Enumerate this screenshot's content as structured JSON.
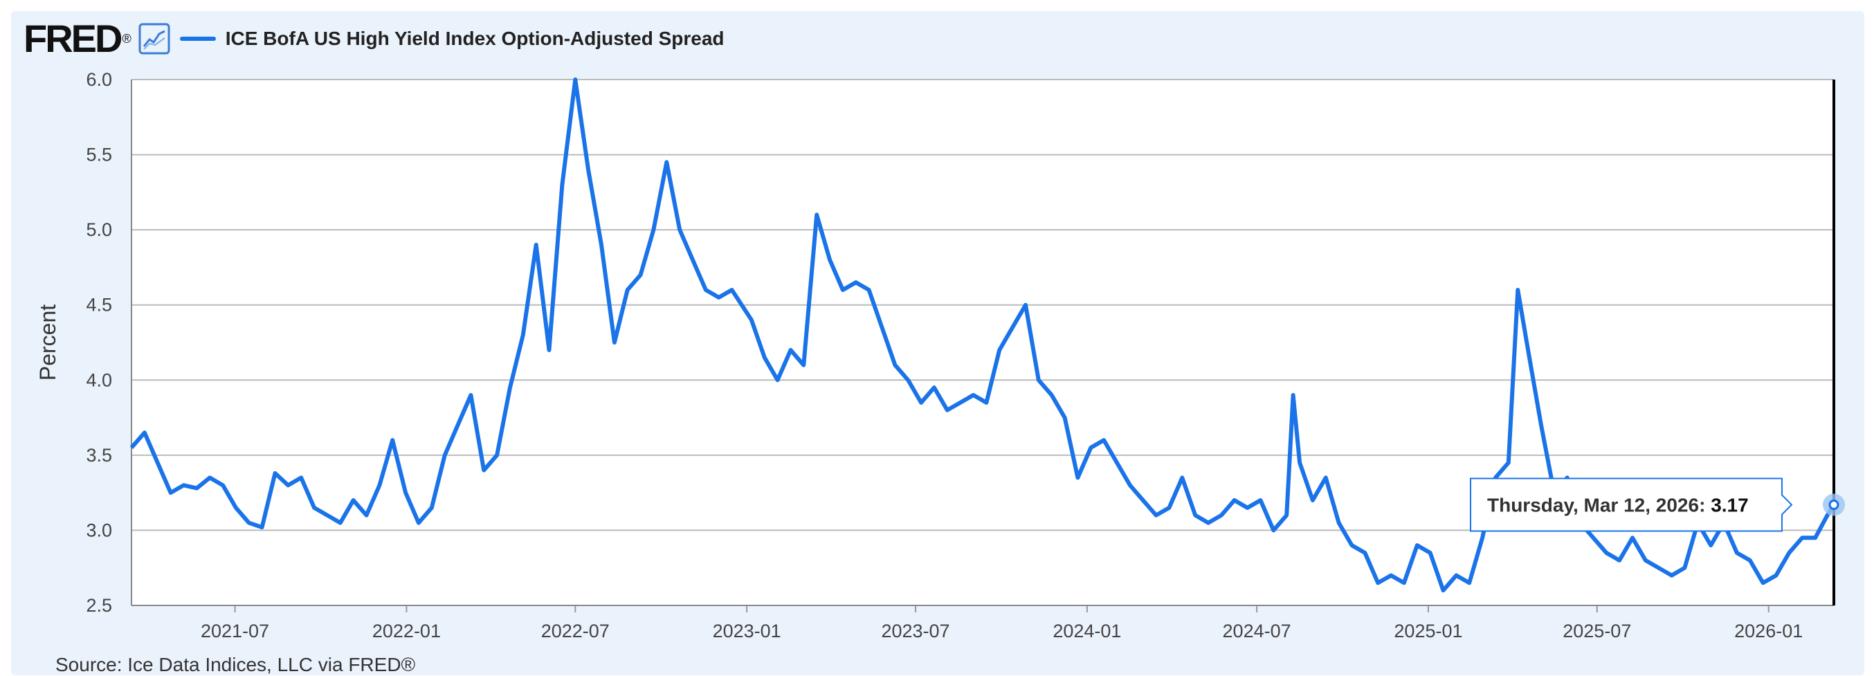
{
  "header": {
    "logo_text": "FRED",
    "logo_mark": "®",
    "logo_icon": "line-chart-icon",
    "series_label": "ICE BofA US High Yield Index Option-Adjusted Spread"
  },
  "colors": {
    "series": "#1a73e8",
    "panel_bg": "#eaf2fb",
    "grid": "#bbbbbb"
  },
  "tooltip": {
    "date": "Thursday, Mar 12, 2026:",
    "value": "3.17"
  },
  "chart_data": {
    "type": "line",
    "title": "",
    "xlabel": "",
    "ylabel": "Percent",
    "ylim": [
      2.5,
      6.0
    ],
    "yticks": [
      "2.5",
      "3.0",
      "3.5",
      "4.0",
      "4.5",
      "5.0",
      "5.5",
      "6.0"
    ],
    "xticks": [
      "2021-07",
      "2022-01",
      "2022-07",
      "2023-01",
      "2023-07",
      "2024-01",
      "2024-07",
      "2025-01",
      "2025-07",
      "2026-01"
    ],
    "xlim": [
      "2021-03-12",
      "2026-03-12"
    ],
    "grid": true,
    "legend": "top-left",
    "series": [
      {
        "name": "ICE BofA US High Yield Index Option-Adjusted Spread",
        "points": [
          [
            "2021-03-12",
            3.55
          ],
          [
            "2021-03-26",
            3.65
          ],
          [
            "2021-04-09",
            3.45
          ],
          [
            "2021-04-23",
            3.25
          ],
          [
            "2021-05-07",
            3.3
          ],
          [
            "2021-05-21",
            3.28
          ],
          [
            "2021-06-04",
            3.35
          ],
          [
            "2021-06-18",
            3.3
          ],
          [
            "2021-07-02",
            3.15
          ],
          [
            "2021-07-16",
            3.05
          ],
          [
            "2021-07-30",
            3.02
          ],
          [
            "2021-08-13",
            3.38
          ],
          [
            "2021-08-27",
            3.3
          ],
          [
            "2021-09-10",
            3.35
          ],
          [
            "2021-09-24",
            3.15
          ],
          [
            "2021-10-08",
            3.1
          ],
          [
            "2021-10-22",
            3.05
          ],
          [
            "2021-11-05",
            3.2
          ],
          [
            "2021-11-19",
            3.1
          ],
          [
            "2021-12-03",
            3.3
          ],
          [
            "2021-12-17",
            3.6
          ],
          [
            "2021-12-31",
            3.25
          ],
          [
            "2022-01-14",
            3.05
          ],
          [
            "2022-01-28",
            3.15
          ],
          [
            "2022-02-11",
            3.5
          ],
          [
            "2022-02-25",
            3.7
          ],
          [
            "2022-03-11",
            3.9
          ],
          [
            "2022-03-25",
            3.4
          ],
          [
            "2022-04-08",
            3.5
          ],
          [
            "2022-04-22",
            3.95
          ],
          [
            "2022-05-06",
            4.3
          ],
          [
            "2022-05-20",
            4.9
          ],
          [
            "2022-06-03",
            4.2
          ],
          [
            "2022-06-17",
            5.3
          ],
          [
            "2022-07-01",
            6.0
          ],
          [
            "2022-07-15",
            5.4
          ],
          [
            "2022-07-29",
            4.9
          ],
          [
            "2022-08-12",
            4.25
          ],
          [
            "2022-08-26",
            4.6
          ],
          [
            "2022-09-09",
            4.7
          ],
          [
            "2022-09-23",
            5.0
          ],
          [
            "2022-10-07",
            5.45
          ],
          [
            "2022-10-21",
            5.0
          ],
          [
            "2022-11-04",
            4.8
          ],
          [
            "2022-11-18",
            4.6
          ],
          [
            "2022-12-02",
            4.55
          ],
          [
            "2022-12-16",
            4.6
          ],
          [
            "2023-01-06",
            4.4
          ],
          [
            "2023-01-20",
            4.15
          ],
          [
            "2023-02-03",
            4.0
          ],
          [
            "2023-02-17",
            4.2
          ],
          [
            "2023-03-03",
            4.1
          ],
          [
            "2023-03-17",
            5.1
          ],
          [
            "2023-03-31",
            4.8
          ],
          [
            "2023-04-14",
            4.6
          ],
          [
            "2023-04-28",
            4.65
          ],
          [
            "2023-05-12",
            4.6
          ],
          [
            "2023-05-26",
            4.35
          ],
          [
            "2023-06-09",
            4.1
          ],
          [
            "2023-06-23",
            4.0
          ],
          [
            "2023-07-07",
            3.85
          ],
          [
            "2023-07-21",
            3.95
          ],
          [
            "2023-08-04",
            3.8
          ],
          [
            "2023-08-18",
            3.85
          ],
          [
            "2023-09-01",
            3.9
          ],
          [
            "2023-09-15",
            3.85
          ],
          [
            "2023-09-29",
            4.2
          ],
          [
            "2023-10-13",
            4.35
          ],
          [
            "2023-10-27",
            4.5
          ],
          [
            "2023-11-10",
            4.0
          ],
          [
            "2023-11-24",
            3.9
          ],
          [
            "2023-12-08",
            3.75
          ],
          [
            "2023-12-22",
            3.35
          ],
          [
            "2024-01-05",
            3.55
          ],
          [
            "2024-01-19",
            3.6
          ],
          [
            "2024-02-02",
            3.45
          ],
          [
            "2024-02-16",
            3.3
          ],
          [
            "2024-03-01",
            3.2
          ],
          [
            "2024-03-15",
            3.1
          ],
          [
            "2024-03-29",
            3.15
          ],
          [
            "2024-04-12",
            3.35
          ],
          [
            "2024-04-26",
            3.1
          ],
          [
            "2024-05-10",
            3.05
          ],
          [
            "2024-05-24",
            3.1
          ],
          [
            "2024-06-07",
            3.2
          ],
          [
            "2024-06-21",
            3.15
          ],
          [
            "2024-07-05",
            3.2
          ],
          [
            "2024-07-19",
            3.0
          ],
          [
            "2024-08-02",
            3.1
          ],
          [
            "2024-08-09",
            3.9
          ],
          [
            "2024-08-16",
            3.45
          ],
          [
            "2024-08-30",
            3.2
          ],
          [
            "2024-09-13",
            3.35
          ],
          [
            "2024-09-27",
            3.05
          ],
          [
            "2024-10-11",
            2.9
          ],
          [
            "2024-10-25",
            2.85
          ],
          [
            "2024-11-08",
            2.65
          ],
          [
            "2024-11-22",
            2.7
          ],
          [
            "2024-12-06",
            2.65
          ],
          [
            "2024-12-20",
            2.9
          ],
          [
            "2025-01-03",
            2.85
          ],
          [
            "2025-01-17",
            2.6
          ],
          [
            "2025-01-31",
            2.7
          ],
          [
            "2025-02-14",
            2.65
          ],
          [
            "2025-02-28",
            2.95
          ],
          [
            "2025-03-14",
            3.35
          ],
          [
            "2025-03-28",
            3.45
          ],
          [
            "2025-04-07",
            4.6
          ],
          [
            "2025-04-18",
            4.2
          ],
          [
            "2025-05-02",
            3.7
          ],
          [
            "2025-05-16",
            3.25
          ],
          [
            "2025-05-30",
            3.35
          ],
          [
            "2025-06-13",
            3.05
          ],
          [
            "2025-06-27",
            2.95
          ],
          [
            "2025-07-11",
            2.85
          ],
          [
            "2025-07-25",
            2.8
          ],
          [
            "2025-08-08",
            2.95
          ],
          [
            "2025-08-22",
            2.8
          ],
          [
            "2025-09-05",
            2.75
          ],
          [
            "2025-09-19",
            2.7
          ],
          [
            "2025-10-03",
            2.75
          ],
          [
            "2025-10-17",
            3.05
          ],
          [
            "2025-10-31",
            2.9
          ],
          [
            "2025-11-14",
            3.05
          ],
          [
            "2025-11-28",
            2.85
          ],
          [
            "2025-12-12",
            2.8
          ],
          [
            "2025-12-26",
            2.65
          ],
          [
            "2026-01-09",
            2.7
          ],
          [
            "2026-01-23",
            2.85
          ],
          [
            "2026-02-06",
            2.95
          ],
          [
            "2026-02-20",
            2.95
          ],
          [
            "2026-03-05",
            3.1
          ],
          [
            "2026-03-12",
            3.17
          ]
        ]
      }
    ]
  },
  "footer": {
    "source": "Source: Ice Data Indices, LLC via FRED®"
  }
}
